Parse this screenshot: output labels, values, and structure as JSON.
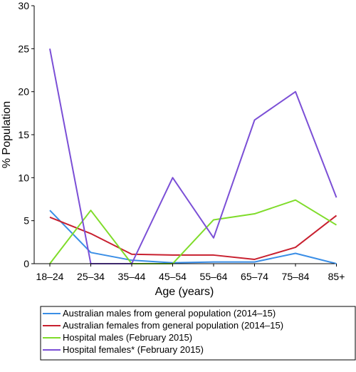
{
  "chart_data": {
    "type": "line",
    "title": "",
    "xlabel": "Age (years)",
    "ylabel": "% Population",
    "categories": [
      "18–24",
      "25–34",
      "35–44",
      "45–54",
      "55–64",
      "65–74",
      "75–84",
      "85+"
    ],
    "ylim": [
      0,
      30
    ],
    "yticks": [
      "0",
      "5",
      "10",
      "15",
      "20",
      "25",
      "30"
    ],
    "grid": false,
    "legend_placement": "bottom",
    "series": [
      {
        "name": "Australian males from general population (2014–15)",
        "color": "#3a8ee6",
        "values": [
          6.2,
          1.3,
          0.4,
          0.1,
          0.2,
          0.2,
          1.2,
          0.0
        ]
      },
      {
        "name": "Australian females from general population (2014–15)",
        "color": "#c8202f",
        "values": [
          5.4,
          3.5,
          1.1,
          1.0,
          1.0,
          0.5,
          1.9,
          5.6
        ]
      },
      {
        "name": "Hospital males (February 2015)",
        "color": "#7fdc2a",
        "values": [
          0.0,
          6.2,
          0.0,
          0.0,
          5.1,
          5.8,
          7.4,
          4.5
        ]
      },
      {
        "name": "Hospital females* (February 2015)",
        "color": "#7b4fd6",
        "values": [
          25.0,
          0.0,
          0.0,
          10.0,
          3.0,
          16.7,
          20.0,
          7.7
        ]
      }
    ]
  }
}
